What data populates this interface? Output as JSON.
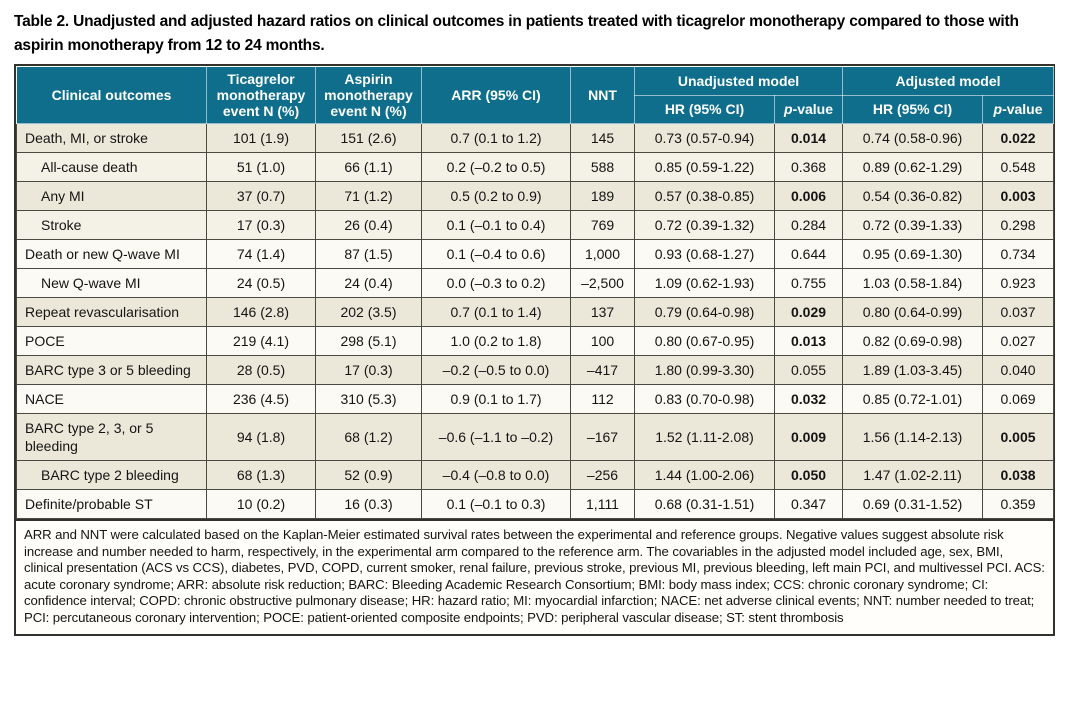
{
  "title": "Table 2. Unadjusted and adjusted hazard ratios on clinical outcomes in patients treated with ticagrelor monotherapy compared to those with aspirin monotherapy from 12 to 24 months.",
  "colors": {
    "header_bg": "#0e6e8c",
    "header_text": "#ffffff",
    "row_beige": "#ece8d9",
    "row_light": "#f4f1e6",
    "row_white": "#fbfaf4",
    "grid_border": "#4b4a42",
    "outer_border": "#32322c"
  },
  "table": {
    "header": {
      "clinical_outcomes": "Clinical outcomes",
      "ticagrelor": "Ticagrelor monotherapy event N (%)",
      "aspirin": "Aspirin monotherapy event N (%)",
      "arr": "ARR (95% CI)",
      "nnt": "NNT",
      "unadjusted_model": "Unadjusted model",
      "adjusted_model": "Adjusted model",
      "hr": "HR (95% CI)",
      "p_italic": "p",
      "p_rest": "-value"
    },
    "rows": [
      {
        "outcome": "Death, MI, or stroke",
        "indent": false,
        "tone": "beige",
        "ticagrelor": "101 (1.9)",
        "aspirin": "151 (2.6)",
        "arr": "0.7 (0.1 to 1.2)",
        "nnt": "145",
        "unadj_hr": "0.73 (0.57-0.94)",
        "unadj_p": "0.014",
        "unadj_p_bold": true,
        "adj_hr": "0.74 (0.58-0.96)",
        "adj_p": "0.022",
        "adj_p_bold": true
      },
      {
        "outcome": "All-cause death",
        "indent": true,
        "tone": "light",
        "ticagrelor": "51 (1.0)",
        "aspirin": "66 (1.1)",
        "arr": "0.2 (–0.2 to 0.5)",
        "nnt": "588",
        "unadj_hr": "0.85 (0.59-1.22)",
        "unadj_p": "0.368",
        "unadj_p_bold": false,
        "adj_hr": "0.89 (0.62-1.29)",
        "adj_p": "0.548",
        "adj_p_bold": false
      },
      {
        "outcome": "Any MI",
        "indent": true,
        "tone": "beige",
        "ticagrelor": "37 (0.7)",
        "aspirin": "71 (1.2)",
        "arr": "0.5 (0.2 to 0.9)",
        "nnt": "189",
        "unadj_hr": "0.57 (0.38-0.85)",
        "unadj_p": "0.006",
        "unadj_p_bold": true,
        "adj_hr": "0.54 (0.36-0.82)",
        "adj_p": "0.003",
        "adj_p_bold": true
      },
      {
        "outcome": "Stroke",
        "indent": true,
        "tone": "light",
        "ticagrelor": "17 (0.3)",
        "aspirin": "26 (0.4)",
        "arr": "0.1 (–0.1 to 0.4)",
        "nnt": "769",
        "unadj_hr": "0.72 (0.39-1.32)",
        "unadj_p": "0.284",
        "unadj_p_bold": false,
        "adj_hr": "0.72 (0.39-1.33)",
        "adj_p": "0.298",
        "adj_p_bold": false
      },
      {
        "outcome": "Death or new Q-wave MI",
        "indent": false,
        "tone": "white",
        "ticagrelor": "74 (1.4)",
        "aspirin": "87 (1.5)",
        "arr": "0.1 (–0.4 to 0.6)",
        "nnt": "1,000",
        "unadj_hr": "0.93 (0.68-1.27)",
        "unadj_p": "0.644",
        "unadj_p_bold": false,
        "adj_hr": "0.95 (0.69-1.30)",
        "adj_p": "0.734",
        "adj_p_bold": false
      },
      {
        "outcome": "New Q-wave MI",
        "indent": true,
        "tone": "white",
        "ticagrelor": "24 (0.5)",
        "aspirin": "24 (0.4)",
        "arr": "0.0 (–0.3 to 0.2)",
        "nnt": "–2,500",
        "unadj_hr": "1.09 (0.62-1.93)",
        "unadj_p": "0.755",
        "unadj_p_bold": false,
        "adj_hr": "1.03 (0.58-1.84)",
        "adj_p": "0.923",
        "adj_p_bold": false
      },
      {
        "outcome": "Repeat revascularisation",
        "indent": false,
        "tone": "beige",
        "ticagrelor": "146 (2.8)",
        "aspirin": "202 (3.5)",
        "arr": "0.7 (0.1 to 1.4)",
        "nnt": "137",
        "unadj_hr": "0.79 (0.64-0.98)",
        "unadj_p": "0.029",
        "unadj_p_bold": true,
        "adj_hr": "0.80 (0.64-0.99)",
        "adj_p": "0.037",
        "adj_p_bold": false
      },
      {
        "outcome": "POCE",
        "indent": false,
        "tone": "white",
        "ticagrelor": "219 (4.1)",
        "aspirin": "298 (5.1)",
        "arr": "1.0 (0.2 to 1.8)",
        "nnt": "100",
        "unadj_hr": "0.80 (0.67-0.95)",
        "unadj_p": "0.013",
        "unadj_p_bold": true,
        "adj_hr": "0.82 (0.69-0.98)",
        "adj_p": "0.027",
        "adj_p_bold": false
      },
      {
        "outcome": "BARC type 3 or 5 bleeding",
        "indent": false,
        "tone": "beige",
        "ticagrelor": "28 (0.5)",
        "aspirin": "17 (0.3)",
        "arr": "–0.2 (–0.5 to 0.0)",
        "nnt": "–417",
        "unadj_hr": "1.80 (0.99-3.30)",
        "unadj_p": "0.055",
        "unadj_p_bold": false,
        "adj_hr": "1.89 (1.03-3.45)",
        "adj_p": "0.040",
        "adj_p_bold": false
      },
      {
        "outcome": "NACE",
        "indent": false,
        "tone": "white",
        "ticagrelor": "236 (4.5)",
        "aspirin": "310 (5.3)",
        "arr": "0.9 (0.1 to 1.7)",
        "nnt": "112",
        "unadj_hr": "0.83 (0.70-0.98)",
        "unadj_p": "0.032",
        "unadj_p_bold": true,
        "adj_hr": "0.85 (0.72-1.01)",
        "adj_p": "0.069",
        "adj_p_bold": false
      },
      {
        "outcome": "BARC type 2, 3, or 5 bleeding",
        "indent": false,
        "tone": "beige",
        "ticagrelor": "94 (1.8)",
        "aspirin": "68 (1.2)",
        "arr": "–0.6 (–1.1 to –0.2)",
        "nnt": "–167",
        "unadj_hr": "1.52 (1.11-2.08)",
        "unadj_p": "0.009",
        "unadj_p_bold": true,
        "adj_hr": "1.56 (1.14-2.13)",
        "adj_p": "0.005",
        "adj_p_bold": true
      },
      {
        "outcome": "BARC type 2 bleeding",
        "indent": true,
        "tone": "beige",
        "ticagrelor": "68 (1.3)",
        "aspirin": "52 (0.9)",
        "arr": "–0.4 (–0.8 to 0.0)",
        "nnt": "–256",
        "unadj_hr": "1.44 (1.00-2.06)",
        "unadj_p": "0.050",
        "unadj_p_bold": true,
        "adj_hr": "1.47 (1.02-2.11)",
        "adj_p": "0.038",
        "adj_p_bold": true
      },
      {
        "outcome": "Definite/probable ST",
        "indent": false,
        "tone": "white",
        "ticagrelor": "10 (0.2)",
        "aspirin": "16 (0.3)",
        "arr": "0.1 (–0.1 to 0.3)",
        "nnt": "1,111",
        "unadj_hr": "0.68 (0.31-1.51)",
        "unadj_p": "0.347",
        "unadj_p_bold": false,
        "adj_hr": "0.69 (0.31-1.52)",
        "adj_p": "0.359",
        "adj_p_bold": false
      }
    ]
  },
  "footnote": "ARR and NNT were calculated based on the Kaplan-Meier estimated survival rates between the experimental and reference groups. Negative values suggest absolute risk increase and number needed to harm, respectively, in the experimental arm compared to the reference arm. The covariables in the adjusted model included age, sex, BMI, clinical presentation (ACS vs CCS), diabetes, PVD, COPD, current smoker, renal failure, previous stroke, previous MI, previous bleeding, left main PCI, and multivessel PCI. ACS: acute coronary syndrome; ARR: absolute risk reduction; BARC: Bleeding Academic Research Consortium; BMI: body mass index; CCS: chronic coronary syndrome; CI: confidence interval; COPD: chronic obstructive pulmonary disease; HR: hazard ratio; MI: myocardial infarction; NACE: net adverse clinical events; NNT: number needed to treat; PCI: percutaneous coronary intervention; POCE: patient-oriented composite endpoints; PVD: peripheral vascular disease; ST: stent thrombosis"
}
